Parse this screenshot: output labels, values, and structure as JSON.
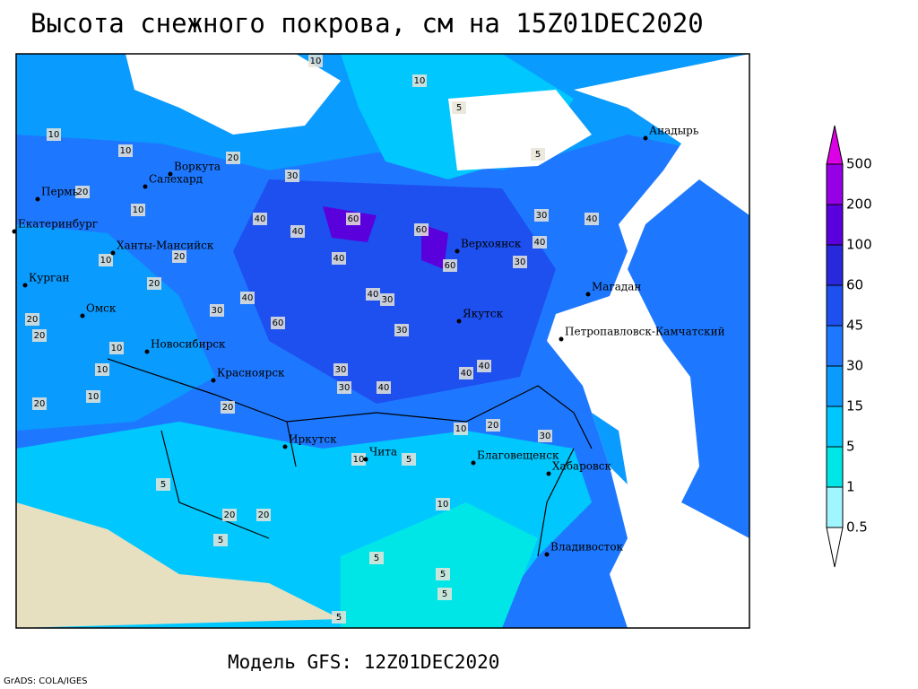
{
  "title": "Высота снежного покрова, см на 15Z01DEC2020",
  "footer": "Модель GFS: 12Z01DEC2020",
  "credit": "GrADS: COLA/IGES",
  "legend": {
    "levels": [
      0.5,
      1,
      5,
      15,
      30,
      45,
      60,
      100,
      200,
      500
    ],
    "colors": [
      "#ffffff",
      "#a0f5ff",
      "#00e6e6",
      "#00c8ff",
      "#0a9bff",
      "#1e78ff",
      "#1e50f0",
      "#2828dc",
      "#5a00dc",
      "#9600e6",
      "#dc00e6"
    ]
  },
  "cities": [
    "Воркута",
    "Салехард",
    "Пермь",
    "Екатеринбург",
    "Ханты-Мансийск",
    "Курган",
    "Омск",
    "Новосибирск",
    "Красноярск",
    "Иркутск",
    "Чита",
    "Благовещенск",
    "Хабаровск",
    "Владивосток",
    "Верхоянск",
    "Якутск",
    "Магадан",
    "Анадырь",
    "Петропавловск-Камчатский"
  ],
  "contour_labels": [
    10,
    10,
    5,
    10,
    10,
    5,
    20,
    20,
    10,
    20,
    10,
    20,
    30,
    40,
    60,
    40,
    60,
    40,
    40,
    30,
    60,
    30,
    40,
    40,
    30,
    30,
    30,
    40,
    40,
    60,
    30,
    40,
    20,
    10,
    20,
    20,
    20,
    10,
    10,
    20,
    5,
    5,
    5,
    10,
    20,
    5,
    5,
    10,
    5,
    5,
    30,
    40,
    30,
    20,
    10
  ]
}
